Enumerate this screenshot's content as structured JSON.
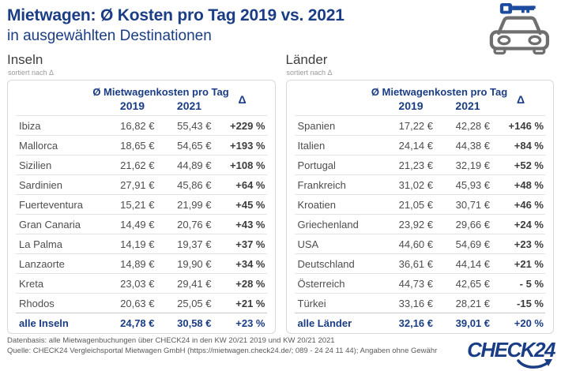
{
  "header": {
    "title_line1": "Mietwagen: Ø Kosten pro Tag 2019 vs. 2021",
    "title_line2": "in ausgewählten Destinationen",
    "icon": "car-with-key-icon"
  },
  "colors": {
    "brand_navy": "#1a3d85",
    "key_blue": "#1d4b9e",
    "icon_gray": "#6f6f6f",
    "row_text": "#4e4e4e",
    "delta_text": "#3c3c3c",
    "card_border": "#d9d9d9",
    "footer_text": "#5a5a5a"
  },
  "chart_data": [
    {
      "type": "table",
      "title": "Inseln",
      "sort_note": "sortiert nach Δ",
      "column_group": "Ø Mietwagenkosten pro Tag",
      "columns": [
        "",
        "2019",
        "2021",
        "Δ"
      ],
      "rows": [
        [
          "Ibiza",
          "16,82 €",
          "55,43 €",
          "+229 %"
        ],
        [
          "Mallorca",
          "18,65 €",
          "54,65 €",
          "+193 %"
        ],
        [
          "Sizilien",
          "21,62 €",
          "44,89 €",
          "+108 %"
        ],
        [
          "Sardinien",
          "27,91 €",
          "45,86 €",
          "+64 %"
        ],
        [
          "Fuerteventura",
          "15,21 €",
          "21,99 €",
          "+45 %"
        ],
        [
          "Gran Canaria",
          "14,49 €",
          "20,76 €",
          "+43 %"
        ],
        [
          "La Palma",
          "14,19 €",
          "19,37 €",
          "+37 %"
        ],
        [
          "Lanzaorte",
          "14,89 €",
          "19,90 €",
          "+34 %"
        ],
        [
          "Kreta",
          "23,03 €",
          "29,41 €",
          "+28 %"
        ],
        [
          "Rhodos",
          "20,63 €",
          "25,05 €",
          "+21 %"
        ]
      ],
      "summary": [
        "alle Inseln",
        "24,78 €",
        "30,58 €",
        "+23 %"
      ]
    },
    {
      "type": "table",
      "title": "Länder",
      "sort_note": "sortiert nach Δ",
      "column_group": "Ø Mietwagenkosten pro Tag",
      "columns": [
        "",
        "2019",
        "2021",
        "Δ"
      ],
      "rows": [
        [
          "Spanien",
          "17,22 €",
          "42,28 €",
          "+146 %"
        ],
        [
          "Italien",
          "24,14 €",
          "44,38 €",
          "+84 %"
        ],
        [
          "Portugal",
          "21,23 €",
          "32,19 €",
          "+52 %"
        ],
        [
          "Frankreich",
          "31,02 €",
          "45,93 €",
          "+48 %"
        ],
        [
          "Kroatien",
          "21,05 €",
          "30,71 €",
          "+46 %"
        ],
        [
          "Griechenland",
          "23,92 €",
          "29,66 €",
          "+24 %"
        ],
        [
          "USA",
          "44,60 €",
          "54,69 €",
          "+23 %"
        ],
        [
          "Deutschland",
          "36,61 €",
          "44,14 €",
          "+21 %"
        ],
        [
          "Österreich",
          "44,73 €",
          "42,65 €",
          "- 5 %"
        ],
        [
          "Türkei",
          "33,16 €",
          "28,21 €",
          "-15 %"
        ]
      ],
      "summary": [
        "alle Länder",
        "32,16 €",
        "39,01 €",
        "+20 %"
      ]
    }
  ],
  "footer": {
    "line1": "Datenbasis: alle Mietwagenbuchungen über CHECK24 in den KW 20/21 2019 und KW 20/21 2021",
    "line2": "Quelle: CHECK24 Vergleichsportal Mietwagen GmbH (https://mietwagen.check24.de/; 089 - 24 24 11 44); Angaben ohne Gewähr",
    "logo_text": "CHECK24"
  }
}
